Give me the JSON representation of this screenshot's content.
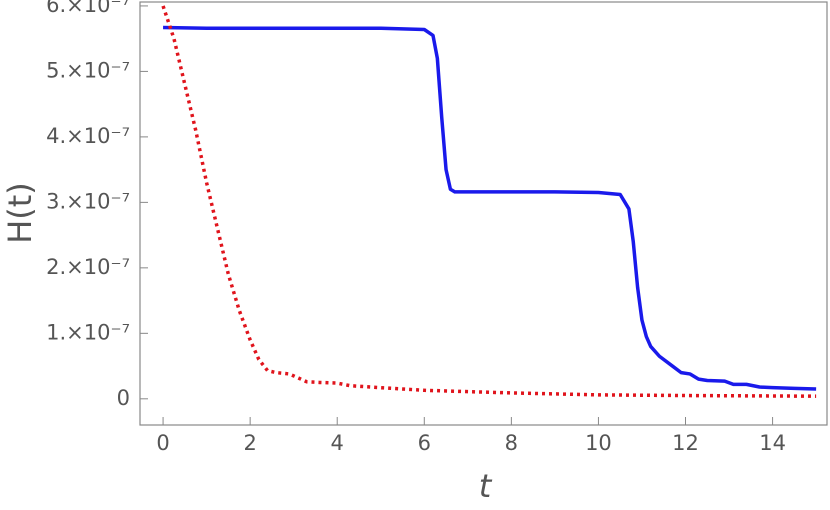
{
  "chart_data": {
    "type": "line",
    "x_label": "t",
    "y_label": "H(t)",
    "xlim": [
      -0.53,
      15.25
    ],
    "ylim": [
      -4e-08,
      6.06e-07
    ],
    "xticks": [
      0,
      2,
      4,
      6,
      8,
      10,
      12,
      14
    ],
    "yticks": [
      0,
      {
        "value": 1e-07,
        "label": "1.×10⁻⁷"
      },
      {
        "value": 2e-07,
        "label": "2.×10⁻⁷"
      },
      {
        "value": 3e-07,
        "label": "3.×10⁻⁷"
      },
      {
        "value": 4e-07,
        "label": "4.×10⁻⁷"
      },
      {
        "value": 5e-07,
        "label": "5.×10⁻⁷"
      },
      {
        "value": 6e-07,
        "label": "6.×10⁻⁷"
      }
    ],
    "series": [
      {
        "color": "#1a1aeb",
        "dash": "solid",
        "x": [
          0,
          1,
          2,
          3,
          4,
          5,
          6,
          6.2,
          6.3,
          6.4,
          6.5,
          6.6,
          6.7,
          7,
          8,
          9,
          10,
          10.5,
          10.7,
          10.8,
          10.9,
          11,
          11.1,
          11.2,
          11.4,
          11.7,
          11.9,
          12.1,
          12.3,
          12.5,
          12.9,
          13.1,
          13.4,
          13.7,
          14,
          14.5,
          15
        ],
        "values": [
          5.67e-07,
          5.66e-07,
          5.66e-07,
          5.66e-07,
          5.66e-07,
          5.66e-07,
          5.64e-07,
          5.55e-07,
          5.2e-07,
          4.3e-07,
          3.5e-07,
          3.2e-07,
          3.16e-07,
          3.16e-07,
          3.16e-07,
          3.16e-07,
          3.15e-07,
          3.12e-07,
          2.9e-07,
          2.4e-07,
          1.7e-07,
          1.2e-07,
          9.5e-08,
          8e-08,
          6.5e-08,
          5e-08,
          4e-08,
          3.8e-08,
          3e-08,
          2.8e-08,
          2.7e-08,
          2.2e-08,
          2.2e-08,
          1.8e-08,
          1.7e-08,
          1.6e-08,
          1.5e-08
        ]
      },
      {
        "color": "#e0141c",
        "dash": "dotted",
        "x": [
          0,
          0.25,
          0.5,
          0.75,
          1,
          1.25,
          1.5,
          1.75,
          2,
          2.2,
          2.4,
          2.6,
          2.9,
          3.1,
          3.3,
          3.6,
          4,
          4.3,
          5,
          6,
          7,
          8,
          10,
          12,
          15
        ],
        "values": [
          6e-07,
          5.5e-07,
          4.8e-07,
          4.1e-07,
          3.3e-07,
          2.6e-07,
          1.9e-07,
          1.35e-07,
          9e-08,
          6e-08,
          4.3e-08,
          4e-08,
          3.8e-08,
          3.2e-08,
          2.6e-08,
          2.5e-08,
          2.4e-08,
          2e-08,
          1.7e-08,
          1.3e-08,
          1.1e-08,
          9e-09,
          6e-09,
          5e-09,
          4e-09
        ]
      }
    ]
  }
}
